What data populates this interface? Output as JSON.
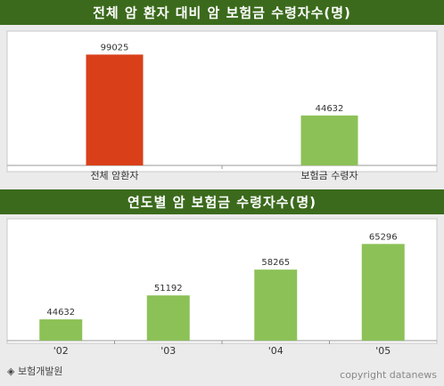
{
  "chart_data": [
    {
      "type": "bar",
      "title": "전체 암 환자 대비 암 보험금 수령자수(명)",
      "categories": [
        "전체 암환자",
        "보험금 수령자"
      ],
      "values": [
        99025,
        44632
      ],
      "colors": [
        "#d9401a",
        "#8cc157"
      ],
      "ylim": [
        0,
        116000
      ]
    },
    {
      "type": "bar",
      "title": "연도별 암 보험금 수령자수(명)",
      "categories": [
        "'02",
        "'03",
        "'04",
        "'05"
      ],
      "values": [
        44632,
        51192,
        58265,
        65296
      ],
      "colors": [
        "#8cc157",
        "#8cc157",
        "#8cc157",
        "#8cc157"
      ],
      "ylim": [
        38800,
        70000
      ]
    }
  ],
  "footer": {
    "source": "◈ 보험개발원",
    "copyright": "copyright datanews"
  }
}
